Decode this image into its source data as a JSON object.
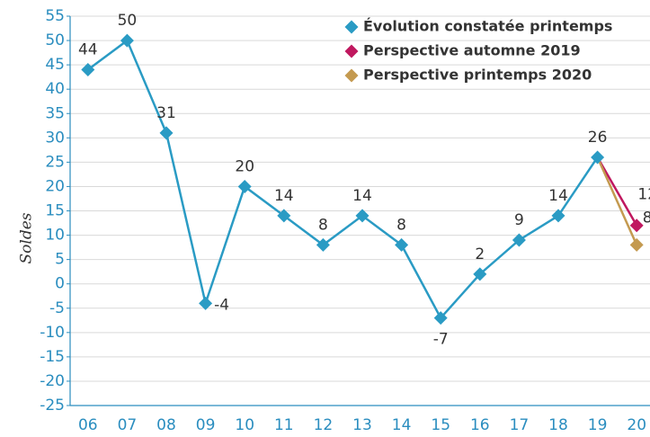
{
  "chart_data": {
    "type": "line",
    "y_label": "Soldes",
    "categories": [
      "06",
      "07",
      "08",
      "09",
      "10",
      "11",
      "12",
      "13",
      "14",
      "15",
      "16",
      "17",
      "18",
      "19",
      "20"
    ],
    "series": [
      {
        "name": "Évolution constatée printemps",
        "color": "#2a9bc4",
        "values": [
          44,
          50,
          31,
          -4,
          20,
          14,
          8,
          14,
          8,
          -7,
          2,
          9,
          14,
          26,
          null
        ]
      },
      {
        "name": "Perspective automne 2019",
        "color": "#c0185f",
        "values": [
          null,
          null,
          null,
          null,
          null,
          null,
          null,
          null,
          null,
          null,
          null,
          null,
          null,
          null,
          12
        ]
      },
      {
        "name": "Perspective printemps 2020",
        "color": "#c49a50",
        "values": [
          null,
          null,
          null,
          null,
          null,
          null,
          null,
          null,
          null,
          null,
          null,
          null,
          null,
          null,
          8
        ]
      }
    ],
    "ylim": [
      -25,
      55
    ],
    "yticks": [
      -25,
      -20,
      -15,
      -10,
      -5,
      0,
      5,
      10,
      15,
      20,
      25,
      30,
      35,
      40,
      45,
      50,
      55
    ],
    "grid": true
  }
}
